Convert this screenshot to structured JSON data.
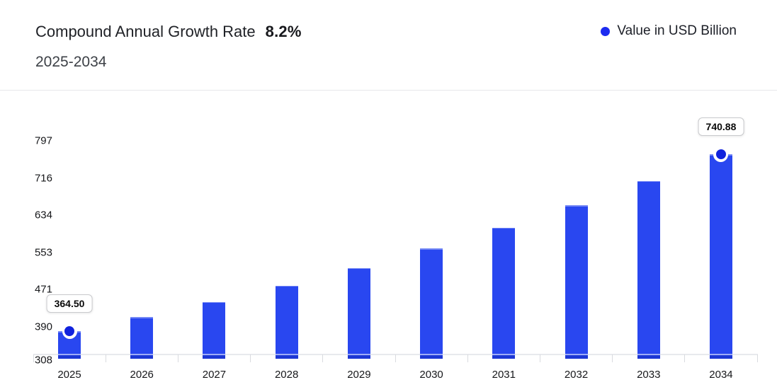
{
  "header": {
    "title": "Compound Annual Growth Rate",
    "cagr": "8.2%",
    "subtitle": "2025-2034"
  },
  "legend": {
    "label": "Value in USD Billion"
  },
  "chart_data": {
    "type": "bar",
    "title": "Compound Annual Growth Rate 8.2%, 2025-2034",
    "unit": "USD Billion",
    "legend": [
      "Value in USD Billion"
    ],
    "legend_position": "top-right",
    "grid": false,
    "categories": [
      "2025",
      "2026",
      "2027",
      "2028",
      "2029",
      "2030",
      "2031",
      "2032",
      "2033",
      "2034"
    ],
    "values": [
      364.5,
      394.39,
      426.73,
      461.72,
      499.58,
      540.55,
      584.87,
      632.83,
      684.72,
      740.88
    ],
    "displayed_point_labels": {
      "2025": "364.50",
      "2034": "740.88"
    },
    "marker_points": [
      "2025",
      "2034"
    ],
    "y_ticks": [
      797,
      716,
      634,
      553,
      471,
      390,
      308
    ],
    "ylim": [
      308,
      797
    ],
    "xlabel": "",
    "ylabel": "",
    "colors": {
      "bar": "#2947f0",
      "marker": "#1123dd",
      "legend_dot": "#1c2bf0",
      "axis_line": "#e8e9ed",
      "tick": "#d9dbdf",
      "label_text": "#16171a"
    }
  }
}
